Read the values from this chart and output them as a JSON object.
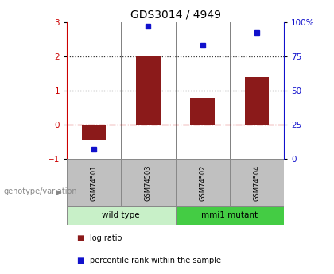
{
  "title": "GDS3014 / 4949",
  "samples": [
    "GSM74501",
    "GSM74503",
    "GSM74502",
    "GSM74504"
  ],
  "log_ratio": [
    -0.45,
    2.02,
    0.78,
    1.38
  ],
  "percentile_rank_pct": [
    7,
    97,
    83,
    92
  ],
  "bar_color": "#8B1A1A",
  "dot_color": "#1111CC",
  "ylim_left": [
    -1,
    3
  ],
  "ylim_right": [
    0,
    100
  ],
  "yticks_left": [
    -1,
    0,
    1,
    2,
    3
  ],
  "yticks_right": [
    0,
    25,
    50,
    75,
    100
  ],
  "hline_zero_color": "#CC0000",
  "hline_zero_style": "dashdot",
  "hline_ref_color": "#333333",
  "hline_ref_style": "dotted",
  "legend_items": [
    {
      "label": "log ratio",
      "color": "#8B1A1A"
    },
    {
      "label": "percentile rank within the sample",
      "color": "#1111CC"
    }
  ],
  "genotype_label": "genotype/variation",
  "sample_box_color": "#C0C0C0",
  "group1_label": "wild type",
  "group1_color": "#c8f0c8",
  "group2_label": "mmi1 mutant",
  "group2_color": "#44CC44",
  "spine_left_color": "#CC0000",
  "spine_right_color": "#1111CC",
  "tick_left_color": "#CC0000",
  "tick_right_color": "#1111CC"
}
